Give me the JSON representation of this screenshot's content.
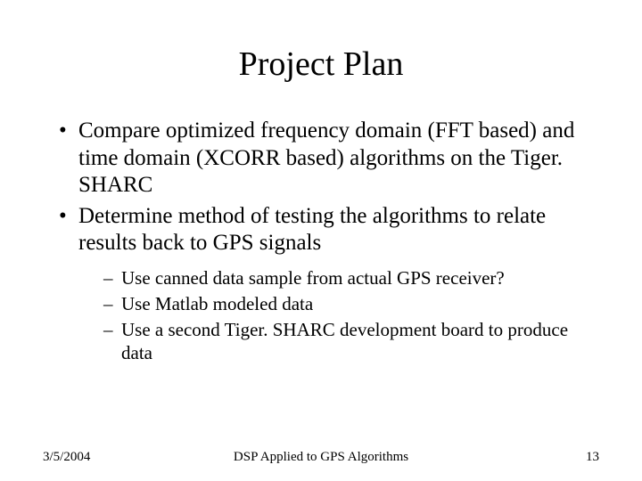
{
  "title": "Project Plan",
  "bullets": [
    {
      "text": "Compare optimized frequency domain (FFT based) and time domain (XCORR based) algorithms on the Tiger. SHARC"
    },
    {
      "text": "Determine method of testing the algorithms to relate results back to GPS signals",
      "sub": [
        "Use canned data sample from actual GPS receiver?",
        "Use Matlab modeled data",
        "Use a second Tiger. SHARC development board to produce data"
      ]
    }
  ],
  "footer": {
    "date": "3/5/2004",
    "center": "DSP Applied to GPS Algorithms",
    "page": "13"
  }
}
